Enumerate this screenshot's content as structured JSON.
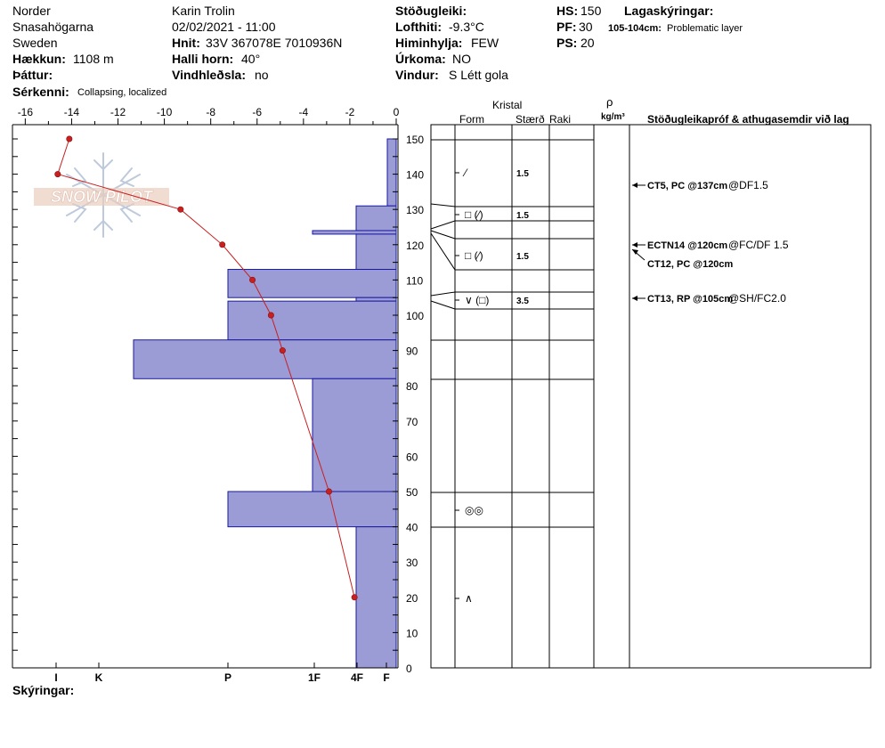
{
  "header": {
    "site": {
      "region": "Norder",
      "place": "Snasahögarna",
      "country": "Sweden",
      "elevation_label": "Hækkun:",
      "elevation": "1108 m",
      "aspect_label": "Þáttur:",
      "aspect": ""
    },
    "observer": {
      "name": "Karin  Trolin",
      "datetime": "02/02/2021 - 11:00",
      "coords_label": "Hnit:",
      "coords": "33V 367078E 7010936N",
      "slope_label": "Halli horn:",
      "slope": "40°",
      "wind_loading_label": "Vindhleðsla:",
      "wind_loading": "no"
    },
    "weather": {
      "stability_label": "Stöðugleiki:",
      "stability": "",
      "air_temp_label": "Lofthiti:",
      "air_temp": "-9.3°C",
      "sky_label": "Himinhylja:",
      "sky": "FEW",
      "precip_label": "Úrkoma:",
      "precip": "NO",
      "wind_label": "Vindur:",
      "wind": "S Létt gola"
    },
    "depths": {
      "hs_label": "HS:",
      "hs": "150",
      "pf_label": "PF:",
      "pf": "30",
      "ps_label": "PS:",
      "ps": "20"
    },
    "layers_notes": {
      "label": "Lagaskýringar:",
      "depth": "105-104cm:",
      "text": "Problematic layer"
    },
    "features": {
      "label": "Sérkenni:",
      "text": "Collapsing, localized"
    },
    "comments_label": "Skýringar:",
    "logo_text": "SNOW PILOT"
  },
  "table": {
    "crystal_header": "Kristal",
    "form_header": "Form",
    "size_header": "Stærð",
    "moisture_header": "Raki",
    "density_header_top": "ρ",
    "density_header_bottom": "kg/m³",
    "tests_header": "Stöðugleikapróf & athugasemdir við lag"
  },
  "colors": {
    "hardness_fill": "#9b9bd6",
    "hardness_stroke": "#1a1aa0",
    "temp_line": "#c82020"
  },
  "chart_data": {
    "type": "bar",
    "depth_axis": {
      "min": 0,
      "max": 150,
      "ticks": [
        0,
        10,
        20,
        30,
        40,
        50,
        60,
        70,
        80,
        90,
        100,
        110,
        120,
        130,
        140,
        150
      ]
    },
    "temp_axis": {
      "min": -16,
      "max": 0,
      "ticks": [
        -16,
        -14,
        -12,
        -10,
        -8,
        -6,
        -4,
        -2,
        0
      ],
      "tick_labels": [
        "-16",
        "-14",
        "-12",
        "-10",
        "-8",
        "-6",
        "-4",
        "-2",
        "0"
      ]
    },
    "hardness_axis": {
      "labels": [
        "I",
        "K",
        "P",
        "1F",
        "4F",
        "F"
      ]
    },
    "hardness_layers": [
      {
        "top": 150,
        "bottom": 131,
        "hardness": "F"
      },
      {
        "top": 131,
        "bottom": 124,
        "hardness": "4F"
      },
      {
        "top": 124,
        "bottom": 123,
        "hardness": "1F"
      },
      {
        "top": 123,
        "bottom": 113,
        "hardness": "4F"
      },
      {
        "top": 113,
        "bottom": 105,
        "hardness": "P"
      },
      {
        "top": 105,
        "bottom": 104,
        "hardness": "4F"
      },
      {
        "top": 104,
        "bottom": 93,
        "hardness": "P"
      },
      {
        "top": 93,
        "bottom": 82,
        "hardness": "I-K"
      },
      {
        "top": 82,
        "bottom": 50,
        "hardness": "1F"
      },
      {
        "top": 50,
        "bottom": 40,
        "hardness": "P"
      },
      {
        "top": 40,
        "bottom": 0,
        "hardness": "4F"
      }
    ],
    "temperature_profile": [
      {
        "depth": 150,
        "temp": -14.1
      },
      {
        "depth": 140,
        "temp": -14.6
      },
      {
        "depth": 130,
        "temp": -9.3
      },
      {
        "depth": 120,
        "temp": -7.5
      },
      {
        "depth": 110,
        "temp": -6.2
      },
      {
        "depth": 100,
        "temp": -5.4
      },
      {
        "depth": 90,
        "temp": -4.9
      },
      {
        "depth": 50,
        "temp": -2.9
      },
      {
        "depth": 20,
        "temp": -1.8
      }
    ],
    "layers": [
      {
        "top": 150,
        "bottom": 131,
        "form": "⁄",
        "size": "1.5"
      },
      {
        "top": 131,
        "bottom": 126,
        "form": "□ (⁄)",
        "size": "1.5"
      },
      {
        "top": 123,
        "bottom": 113,
        "form": "□ (⁄)",
        "size": "1.5"
      },
      {
        "top": 106,
        "bottom": 102,
        "form": "∨ (□)",
        "size": "3.5"
      },
      {
        "top": 50,
        "bottom": 40,
        "form": "◎◎",
        "size": ""
      },
      {
        "top": 40,
        "bottom": 0,
        "form": "∧",
        "size": ""
      }
    ],
    "layer_boundaries": [
      150,
      131,
      126,
      113,
      106,
      102,
      93,
      82,
      50,
      40,
      0
    ],
    "stability_tests": [
      {
        "depth": 137,
        "test": "CT5, PC @137cm",
        "result": "@DF1.5"
      },
      {
        "depth": 120,
        "test": "ECTN14 @120cm",
        "result": "@FC/DF 1.5"
      },
      {
        "depth": 120,
        "test": "CT12, PC @120cm",
        "result": ""
      },
      {
        "depth": 105,
        "test": "CT13, RP @105cm",
        "result": "@SH/FC2.0"
      }
    ]
  }
}
